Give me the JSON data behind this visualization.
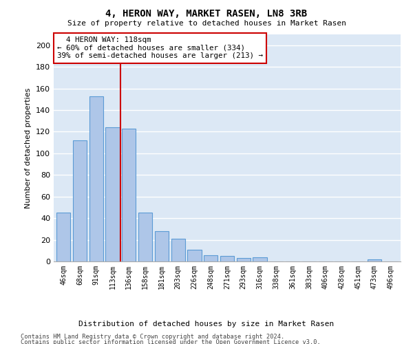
{
  "title": "4, HERON WAY, MARKET RASEN, LN8 3RB",
  "subtitle": "Size of property relative to detached houses in Market Rasen",
  "xlabel": "Distribution of detached houses by size in Market Rasen",
  "ylabel": "Number of detached properties",
  "categories": [
    "46sqm",
    "68sqm",
    "91sqm",
    "113sqm",
    "136sqm",
    "158sqm",
    "181sqm",
    "203sqm",
    "226sqm",
    "248sqm",
    "271sqm",
    "293sqm",
    "316sqm",
    "338sqm",
    "361sqm",
    "383sqm",
    "406sqm",
    "428sqm",
    "451sqm",
    "473sqm",
    "496sqm"
  ],
  "values": [
    45,
    112,
    153,
    124,
    123,
    45,
    28,
    21,
    11,
    6,
    5,
    3,
    4,
    0,
    0,
    0,
    0,
    0,
    0,
    2,
    0
  ],
  "bar_color": "#aec6e8",
  "bar_edge_color": "#5b9bd5",
  "vline_x": 3.5,
  "vline_color": "#cc0000",
  "annotation_text": "  4 HERON WAY: 118sqm\n← 60% of detached houses are smaller (334)\n39% of semi-detached houses are larger (213) →",
  "annotation_box_color": "#ffffff",
  "annotation_box_edge_color": "#cc0000",
  "ylim": [
    0,
    210
  ],
  "yticks": [
    0,
    20,
    40,
    60,
    80,
    100,
    120,
    140,
    160,
    180,
    200
  ],
  "background_color": "#dce8f5",
  "grid_color": "#ffffff",
  "footer_line1": "Contains HM Land Registry data © Crown copyright and database right 2024.",
  "footer_line2": "Contains public sector information licensed under the Open Government Licence v3.0."
}
